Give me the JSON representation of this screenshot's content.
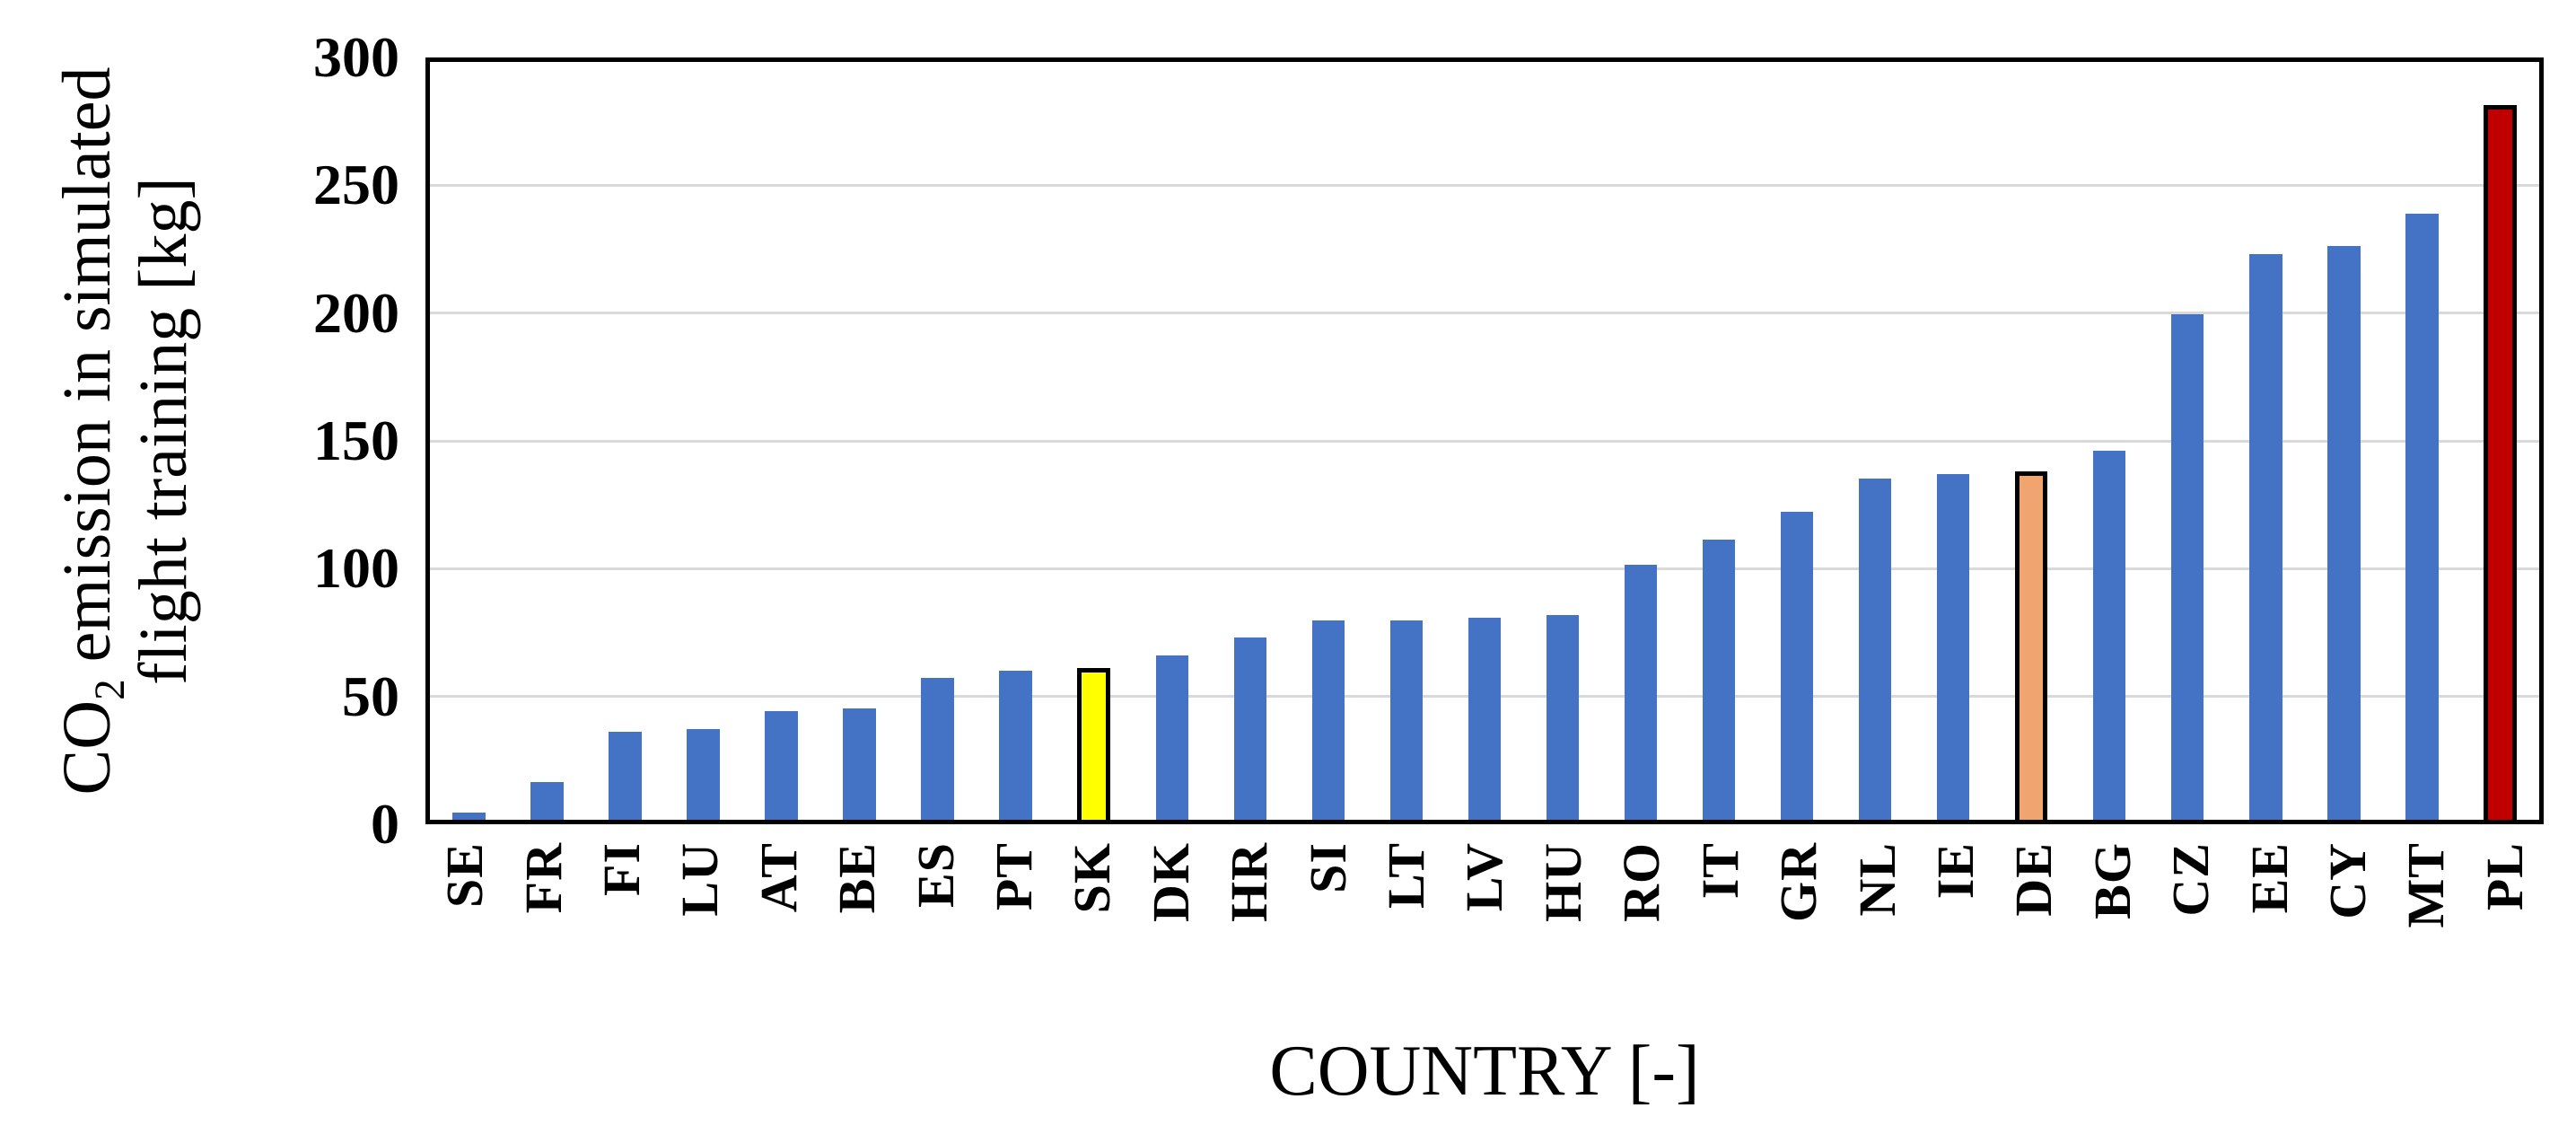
{
  "axes": {
    "y_title_pre": "CO",
    "y_title_sub": "2",
    "y_title_rest": " emission in simulated",
    "y_title_line2": "flight training [kg]",
    "x_title": "COUNTRY [-]"
  },
  "chart_data": {
    "type": "bar",
    "xlabel": "COUNTRY [-]",
    "ylabel": "CO2 emission in simulated flight training [kg]",
    "ylim": [
      0,
      300
    ],
    "yticks": [
      0,
      50,
      100,
      150,
      200,
      250,
      300
    ],
    "grid": true,
    "gridline_color": "#D9D9D9",
    "frame_color": "#000000",
    "categories": [
      "SE",
      "FR",
      "FI",
      "LU",
      "AT",
      "BE",
      "ES",
      "PT",
      "SK",
      "DK",
      "HR",
      "SI",
      "LT",
      "LV",
      "HU",
      "RO",
      "IT",
      "GR",
      "NL",
      "IE",
      "DE",
      "BG",
      "CZ",
      "EE",
      "CY",
      "MT",
      "PL"
    ],
    "values": [
      3,
      15,
      35,
      36,
      43,
      44,
      56,
      59,
      60,
      65,
      72,
      79,
      79,
      80,
      81,
      101,
      111,
      122,
      135,
      137,
      138,
      146,
      200,
      224,
      227,
      240,
      283
    ],
    "bar_default_color": "#4472C4",
    "highlights": {
      "SK": {
        "fill": "#FFFF00",
        "border": "#000000"
      },
      "DE": {
        "fill": "#F0A571",
        "border": "#000000"
      },
      "PL": {
        "fill": "#C00000",
        "border": "#000000"
      }
    }
  }
}
